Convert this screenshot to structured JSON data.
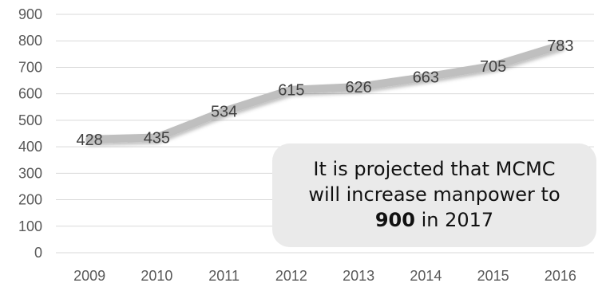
{
  "chart_data": {
    "type": "line",
    "categories": [
      "2009",
      "2010",
      "2011",
      "2012",
      "2013",
      "2014",
      "2015",
      "2016"
    ],
    "series": [
      {
        "values": [
          428,
          435,
          534,
          615,
          626,
          663,
          705,
          783
        ]
      }
    ],
    "data_labels": [
      "428",
      "435",
      "534",
      "615",
      "626",
      "663",
      "705",
      "783"
    ],
    "y_ticks": [
      "0",
      "100",
      "200",
      "300",
      "400",
      "500",
      "600",
      "700",
      "800",
      "900"
    ],
    "ylim": [
      0,
      900
    ],
    "grid": true,
    "line_color": "#bfbfbf",
    "title": "",
    "xlabel": "",
    "ylabel": ""
  },
  "callout": {
    "line1": "It is projected that MCMC",
    "line2": "will increase manpower to",
    "value": "900",
    "suffix": " in 2017"
  }
}
